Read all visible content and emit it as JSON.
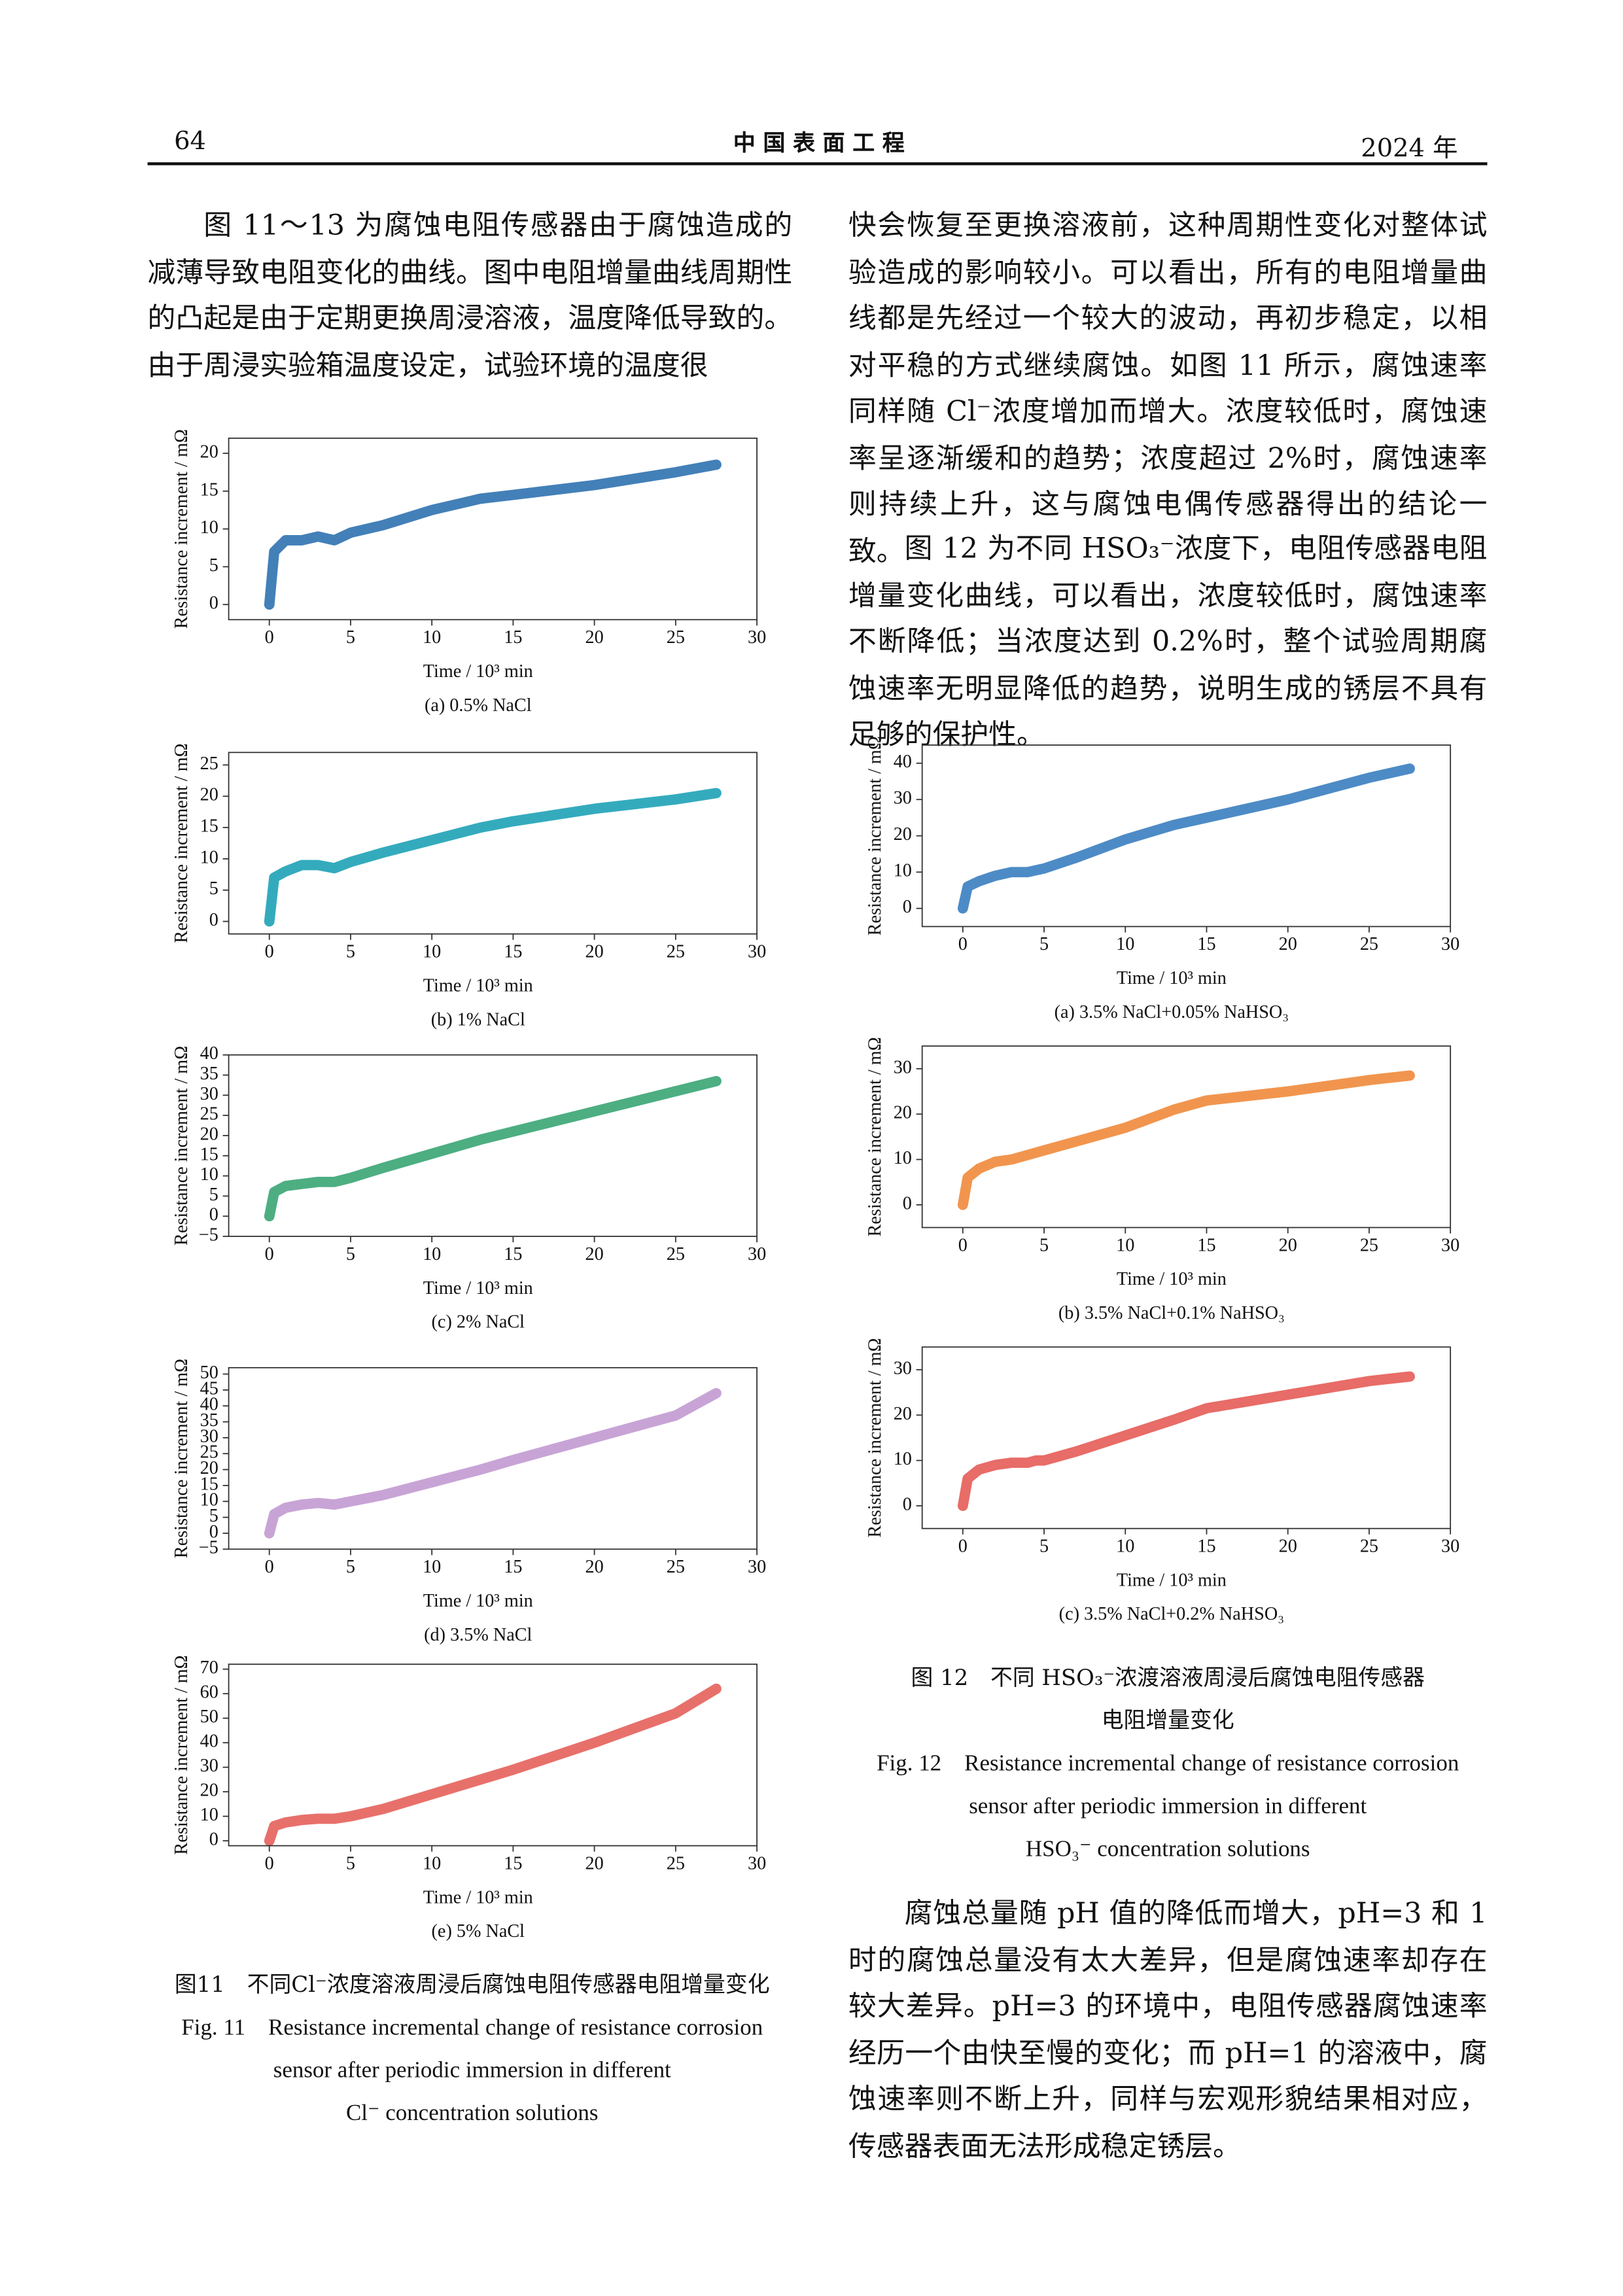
{
  "header": {
    "page_number": "64",
    "journal": "中 国 表 面 工 程",
    "year": "2024 年"
  },
  "paragraphs": {
    "left_1": "图 11～13 为腐蚀电阻传感器由于腐蚀造成的减薄导致电阻变化的曲线。图中电阻增量曲线周期性的凸起是由于定期更换周浸溶液，温度降低导致的。由于周浸实验箱温度设定，试验环境的温度很",
    "right_1": "快会恢复至更换溶液前，这种周期性变化对整体试验造成的影响较小。可以看出，所有的电阻增量曲线都是先经过一个较大的波动，再初步稳定，以相对平稳的方式继续腐蚀。如图 11 所示，腐蚀速率同样随 Cl⁻浓度增加而增大。浓度较低时，腐蚀速率呈逐渐缓和的趋势；浓度超过 2%时，腐蚀速率则持续上升，这与腐蚀电偶传感器得出的结论一致。",
    "right_2": "图 12 为不同 HSO₃⁻浓度下，电阻传感器电阻增量变化曲线，可以看出，浓度较低时，腐蚀速率不断降低；当浓度达到 0.2%时，整个试验周期腐蚀速率无明显降低的趋势，说明生成的锈层不具有足够的保护性。",
    "right_3": "腐蚀总量随 pH 值的降低而增大，pH=3 和 1 时的腐蚀总量没有太大差异，但是腐蚀速率却存在较大差异。pH=3 的环境中，电阻传感器腐蚀速率经历一个由快至慢的变化；而 pH=1 的溶液中，腐蚀速率则不断上升，同样与宏观形貌结果相对应，传感器表面无法形成稳定锈层。"
  },
  "figure_11": {
    "caption_zh": "图11　不同Cl⁻浓度溶液周浸后腐蚀电阻传感器电阻增量变化",
    "caption_en_1": "Fig. 11　Resistance incremental change of resistance corrosion",
    "caption_en_2": "sensor after periodic immersion in different",
    "caption_en_3": "Cl⁻ concentration solutions"
  },
  "figure_12": {
    "caption_zh_1": "图 12　不同 HSO₃⁻浓渡溶液周浸后腐蚀电阻传感器",
    "caption_zh_2": "电阻增量变化",
    "caption_en_1": "Fig. 12　Resistance incremental change of resistance corrosion",
    "caption_en_2": "sensor after periodic immersion in different",
    "caption_en_3": "HSO₃⁻ concentration solutions"
  },
  "chart_data": [
    {
      "type": "line",
      "caption": "(a) 0.5% NaCl",
      "xlabel": "Time / 10³ min",
      "ylabel": "Resistance increment / mΩ",
      "color": "#2f72b0",
      "x": [
        0,
        0.3,
        1,
        2,
        3,
        4,
        4.5,
        5,
        7,
        10,
        13,
        15,
        20,
        25,
        27.5
      ],
      "values": [
        0,
        7,
        8.5,
        8.5,
        9,
        8.5,
        9,
        9.5,
        10.5,
        12.5,
        14,
        14.5,
        15.8,
        17.5,
        18.5
      ],
      "xlim": [
        -2.5,
        30
      ],
      "xticks": [
        0,
        5,
        10,
        15,
        20,
        25,
        30
      ],
      "ylim": [
        -2,
        22
      ],
      "yticks": [
        0,
        5,
        10,
        15,
        20
      ]
    },
    {
      "type": "line",
      "caption": "(b) 1% NaCl",
      "xlabel": "Time / 10³ min",
      "ylabel": "Resistance increment / mΩ",
      "color": "#1ea2b6",
      "x": [
        0,
        0.3,
        1,
        2,
        3,
        4,
        4.5,
        5,
        7,
        10,
        13,
        15,
        20,
        25,
        27.5
      ],
      "values": [
        0,
        7,
        8,
        9,
        9,
        8.5,
        9,
        9.5,
        11,
        13,
        15,
        16,
        18,
        19.5,
        20.5
      ],
      "xlim": [
        -2.5,
        30
      ],
      "xticks": [
        0,
        5,
        10,
        15,
        20,
        25,
        30
      ],
      "ylim": [
        -2,
        27
      ],
      "yticks": [
        0,
        5,
        10,
        15,
        20,
        25
      ]
    },
    {
      "type": "line",
      "caption": "(c) 2% NaCl",
      "xlabel": "Time / 10³ min",
      "ylabel": "Resistance increment / mΩ",
      "color": "#3aa574",
      "x": [
        0,
        0.3,
        1,
        2,
        3,
        4,
        4.5,
        5,
        7,
        10,
        13,
        15,
        20,
        25,
        27.5
      ],
      "values": [
        0,
        6,
        7.5,
        8,
        8.5,
        8.5,
        9,
        9.5,
        12,
        15.5,
        19,
        21,
        26,
        31,
        33.5
      ],
      "xlim": [
        -2.5,
        30
      ],
      "xticks": [
        0,
        5,
        10,
        15,
        20,
        25,
        30
      ],
      "ylim": [
        -5,
        40
      ],
      "yticks": [
        {
          "value": -5,
          "label": "−5"
        },
        0,
        5,
        10,
        15,
        20,
        25,
        30,
        35,
        40
      ]
    },
    {
      "type": "line",
      "caption": "(d) 3.5% NaCl",
      "xlabel": "Time / 10³ min",
      "ylabel": "Resistance increment / mΩ",
      "color": "#c29ad2",
      "x": [
        0,
        0.3,
        1,
        2,
        3,
        4,
        4.5,
        5,
        7,
        10,
        13,
        15,
        20,
        25,
        27.5
      ],
      "values": [
        0,
        6,
        8,
        9,
        9.5,
        9,
        9.5,
        10,
        12,
        16,
        20,
        23,
        30,
        37,
        44
      ],
      "xlim": [
        -2.5,
        30
      ],
      "xticks": [
        0,
        5,
        10,
        15,
        20,
        25,
        30
      ],
      "ylim": [
        -5,
        52
      ],
      "yticks": [
        {
          "value": -5,
          "label": "−5"
        },
        0,
        5,
        10,
        15,
        20,
        25,
        30,
        35,
        40,
        45,
        50
      ]
    },
    {
      "type": "line",
      "caption": "(e) 5% NaCl",
      "xlabel": "Time / 10³ min",
      "ylabel": "Resistance increment / mΩ",
      "color": "#e6615b",
      "x": [
        0,
        0.3,
        1,
        2,
        3,
        4,
        4.5,
        5,
        7,
        10,
        13,
        15,
        20,
        25,
        27.5
      ],
      "values": [
        0,
        6,
        7.5,
        8.5,
        9,
        9,
        9.5,
        10,
        13,
        19,
        25,
        29,
        40,
        52,
        62
      ],
      "xlim": [
        -2.5,
        30
      ],
      "xticks": [
        0,
        5,
        10,
        15,
        20,
        25,
        30
      ],
      "ylim": [
        -2,
        72
      ],
      "yticks": [
        0,
        10,
        20,
        30,
        40,
        50,
        60,
        70
      ]
    },
    {
      "type": "line",
      "caption": "(a) 3.5% NaCl+0.05% NaHSO₃",
      "xlabel": "Time / 10³ min",
      "ylabel": "Resistance increment / mΩ",
      "color": "#3a7ec0",
      "x": [
        0,
        0.3,
        1,
        2,
        3,
        4,
        4.5,
        5,
        7,
        10,
        13,
        15,
        20,
        25,
        27.5
      ],
      "values": [
        0,
        6,
        7.5,
        9,
        10,
        10,
        10.5,
        11,
        14,
        19,
        23,
        25,
        30,
        36,
        38.5
      ],
      "xlim": [
        -2.5,
        30
      ],
      "xticks": [
        0,
        5,
        10,
        15,
        20,
        25,
        30
      ],
      "ylim": [
        -5,
        45
      ],
      "yticks": [
        0,
        10,
        20,
        30,
        40
      ]
    },
    {
      "type": "line",
      "caption": "(b) 3.5% NaCl+0.1% NaHSO₃",
      "xlabel": "Time / 10³ min",
      "ylabel": "Resistance increment / mΩ",
      "color": "#f0893b",
      "x": [
        0,
        0.3,
        1,
        2,
        3,
        4,
        4.5,
        5,
        7,
        10,
        13,
        15,
        20,
        25,
        27.5
      ],
      "values": [
        0,
        6,
        8,
        9.5,
        10,
        11,
        11.5,
        12,
        14,
        17,
        21,
        23,
        25,
        27.5,
        28.5
      ],
      "xlim": [
        -2.5,
        30
      ],
      "xticks": [
        0,
        5,
        10,
        15,
        20,
        25,
        30
      ],
      "ylim": [
        -5,
        35
      ],
      "yticks": [
        0,
        10,
        20,
        30
      ]
    },
    {
      "type": "line",
      "caption": "(c) 3.5% NaCl+0.2% NaHSO₃",
      "xlabel": "Time / 10³ min",
      "ylabel": "Resistance increment / mΩ",
      "color": "#e55c56",
      "x": [
        0,
        0.3,
        1,
        2,
        3,
        4,
        4.5,
        5,
        7,
        10,
        13,
        15,
        20,
        25,
        27.5
      ],
      "values": [
        0,
        6,
        8,
        9,
        9.5,
        9.5,
        10,
        10,
        12,
        15.5,
        19,
        21.5,
        24.5,
        27.5,
        28.5
      ],
      "xlim": [
        -2.5,
        30
      ],
      "xticks": [
        0,
        5,
        10,
        15,
        20,
        25,
        30
      ],
      "ylim": [
        -5,
        35
      ],
      "yticks": [
        0,
        10,
        20,
        30
      ]
    }
  ]
}
